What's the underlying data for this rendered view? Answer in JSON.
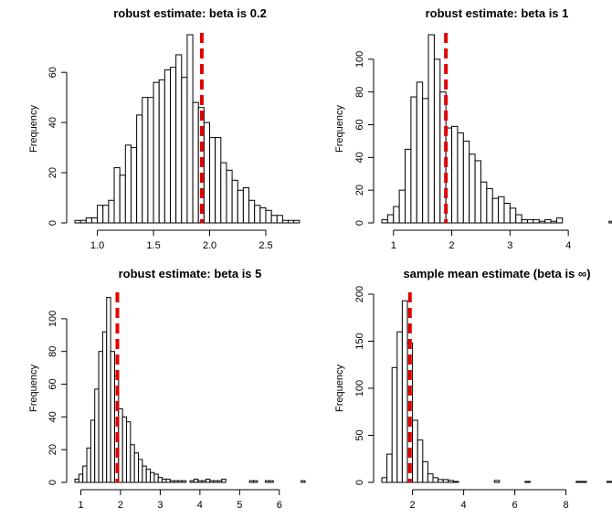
{
  "chart_data": [
    {
      "type": "histogram",
      "title": "robust estimate: beta is 0.2",
      "ylabel": "Frequency",
      "xlabel": "",
      "xlim": [
        0.8,
        2.85
      ],
      "ylim": [
        0,
        75
      ],
      "xticks": [
        1.0,
        1.5,
        2.0,
        2.5
      ],
      "xtick_labels": [
        "1.0",
        "1.5",
        "2.0",
        "2.5"
      ],
      "yticks": [
        0,
        20,
        40,
        60
      ],
      "ytick_labels": [
        "0",
        "20",
        "40",
        "60"
      ],
      "bin_start": 0.8,
      "bin_width": 0.05,
      "counts": [
        1,
        1,
        2,
        2,
        7,
        7,
        9,
        22,
        19,
        31,
        30,
        43,
        50,
        50,
        56,
        57,
        61,
        62,
        67,
        58,
        75,
        48,
        46,
        40,
        34,
        34,
        24,
        21,
        17,
        13,
        14,
        9,
        7,
        6,
        5,
        3,
        3,
        1,
        1,
        1,
        0
      ],
      "reference_line": 1.93,
      "reference_color": "#e00000"
    },
    {
      "type": "histogram",
      "title": "robust estimate: beta is 1",
      "ylabel": "Frequency",
      "xlabel": "",
      "xlim": [
        0.8,
        4.75
      ],
      "ylim": [
        0,
        115
      ],
      "xticks": [
        1,
        2,
        3,
        4
      ],
      "xtick_labels": [
        "1",
        "2",
        "3",
        "4"
      ],
      "yticks": [
        0,
        20,
        40,
        60,
        80,
        100
      ],
      "ytick_labels": [
        "0",
        "20",
        "40",
        "60",
        "80",
        "100"
      ],
      "bin_start": 0.8,
      "bin_width": 0.1,
      "counts": [
        2,
        5,
        10,
        20,
        45,
        77,
        86,
        76,
        115,
        100,
        80,
        58,
        59,
        55,
        50,
        42,
        38,
        25,
        21,
        15,
        16,
        12,
        9,
        5,
        2,
        2,
        2,
        1,
        2,
        1,
        3,
        0,
        0,
        0,
        0,
        0,
        0,
        0,
        0,
        1
      ],
      "reference_line": 1.9,
      "reference_color": "#e00000"
    },
    {
      "type": "histogram",
      "title": "robust estimate: beta is 5",
      "ylabel": "Frequency",
      "xlabel": "",
      "xlim": [
        0.85,
        6.65
      ],
      "ylim": [
        0,
        115
      ],
      "xticks": [
        1,
        2,
        3,
        4,
        5,
        6
      ],
      "xtick_labels": [
        "1",
        "2",
        "3",
        "4",
        "5",
        "6"
      ],
      "yticks": [
        0,
        20,
        40,
        60,
        80,
        100
      ],
      "ytick_labels": [
        "0",
        "20",
        "40",
        "60",
        "80",
        "100"
      ],
      "bin_start": 0.85,
      "bin_width": 0.1,
      "counts": [
        2,
        5,
        10,
        21,
        38,
        57,
        80,
        92,
        113,
        80,
        65,
        45,
        40,
        37,
        23,
        18,
        14,
        10,
        8,
        6,
        5,
        3,
        2,
        2,
        1,
        1,
        1,
        1,
        0,
        1,
        2,
        1,
        1,
        2,
        1,
        1,
        1,
        2,
        0,
        0,
        0,
        0,
        0,
        0,
        1,
        1,
        0,
        0,
        1,
        1,
        0,
        0,
        0,
        0,
        0,
        0,
        0,
        1
      ],
      "reference_line": 1.92,
      "reference_color": "#e00000"
    },
    {
      "type": "histogram",
      "title": "sample mean estimate (beta is ∞)",
      "ylabel": "Frequency",
      "xlabel": "",
      "xlim": [
        0.8,
        9.8
      ],
      "ylim": [
        0,
        200
      ],
      "xticks": [
        2,
        4,
        6,
        8
      ],
      "xtick_labels": [
        "2",
        "4",
        "6",
        "8"
      ],
      "yticks": [
        0,
        50,
        100,
        150,
        200
      ],
      "ytick_labels": [
        "0",
        "50",
        "100",
        "150",
        "200"
      ],
      "bin_start": 0.8,
      "bin_width": 0.2,
      "counts": [
        5,
        30,
        122,
        160,
        193,
        148,
        66,
        45,
        22,
        9,
        5,
        3,
        3,
        2,
        1,
        0,
        0,
        0,
        0,
        0,
        0,
        0,
        2,
        0,
        0,
        0,
        0,
        0,
        1,
        0,
        0,
        0,
        0,
        0,
        0,
        0,
        0,
        0,
        1,
        1,
        0,
        0,
        0,
        0,
        1
      ],
      "reference_line": 1.9,
      "reference_color": "#e00000"
    }
  ]
}
